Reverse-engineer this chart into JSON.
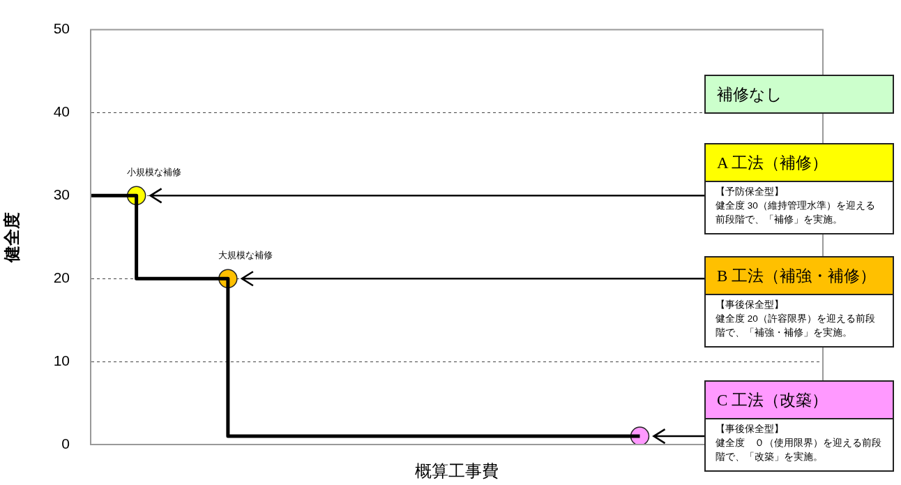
{
  "chart_data": {
    "type": "step",
    "xlabel": "概算工事費",
    "ylabel": "健全度",
    "categories": [
      null,
      null,
      null,
      null,
      null,
      null,
      null,
      null,
      null,
      null,
      null,
      null,
      null,
      null,
      null,
      null,
      null
    ],
    "series": [
      {
        "type": "step",
        "color": "#000000",
        "values": [
          30,
          20,
          20,
          1,
          1,
          1,
          1,
          1,
          1,
          1,
          1,
          1,
          1,
          null,
          null,
          null,
          null
        ]
      },
      {
        "type": "scatter",
        "marker": "circle",
        "value_labels": [
          null,
          "小規模な補修",
          null,
          "大規模な補修",
          null,
          null,
          null,
          null,
          null,
          null,
          null,
          null,
          null,
          null,
          null,
          null,
          null
        ],
        "colors": [
          null,
          "#ffff00",
          null,
          "#ffc000",
          null,
          null,
          null,
          null,
          null,
          null,
          null,
          null,
          "#ff99ff",
          null,
          null,
          null,
          null
        ],
        "values": [
          null,
          30,
          null,
          20,
          null,
          null,
          null,
          null,
          null,
          null,
          null,
          null,
          1,
          null,
          null,
          null,
          null
        ]
      }
    ],
    "ylim": [
      0,
      50
    ],
    "yticks": [
      0,
      10,
      20,
      30,
      40,
      50
    ],
    "grid": "y",
    "legend": false,
    "tick_labels": "y",
    "annotations": [
      "補修なし",
      "A 工法（補修）",
      "【予防保全型】",
      "健全度 30（維持管理水準）を迎える前段階で、「補修」を実施。",
      "B 工法（補強・補修）",
      "【事後保全型】",
      "健全度 20（許容限界）を迎える前段階で、「補強・補修」を実施。",
      "C 工法（改築）",
      "【事後保全型】",
      "健全度　０（使用限界）を迎える前段階で、「改築」を実施。"
    ]
  }
}
